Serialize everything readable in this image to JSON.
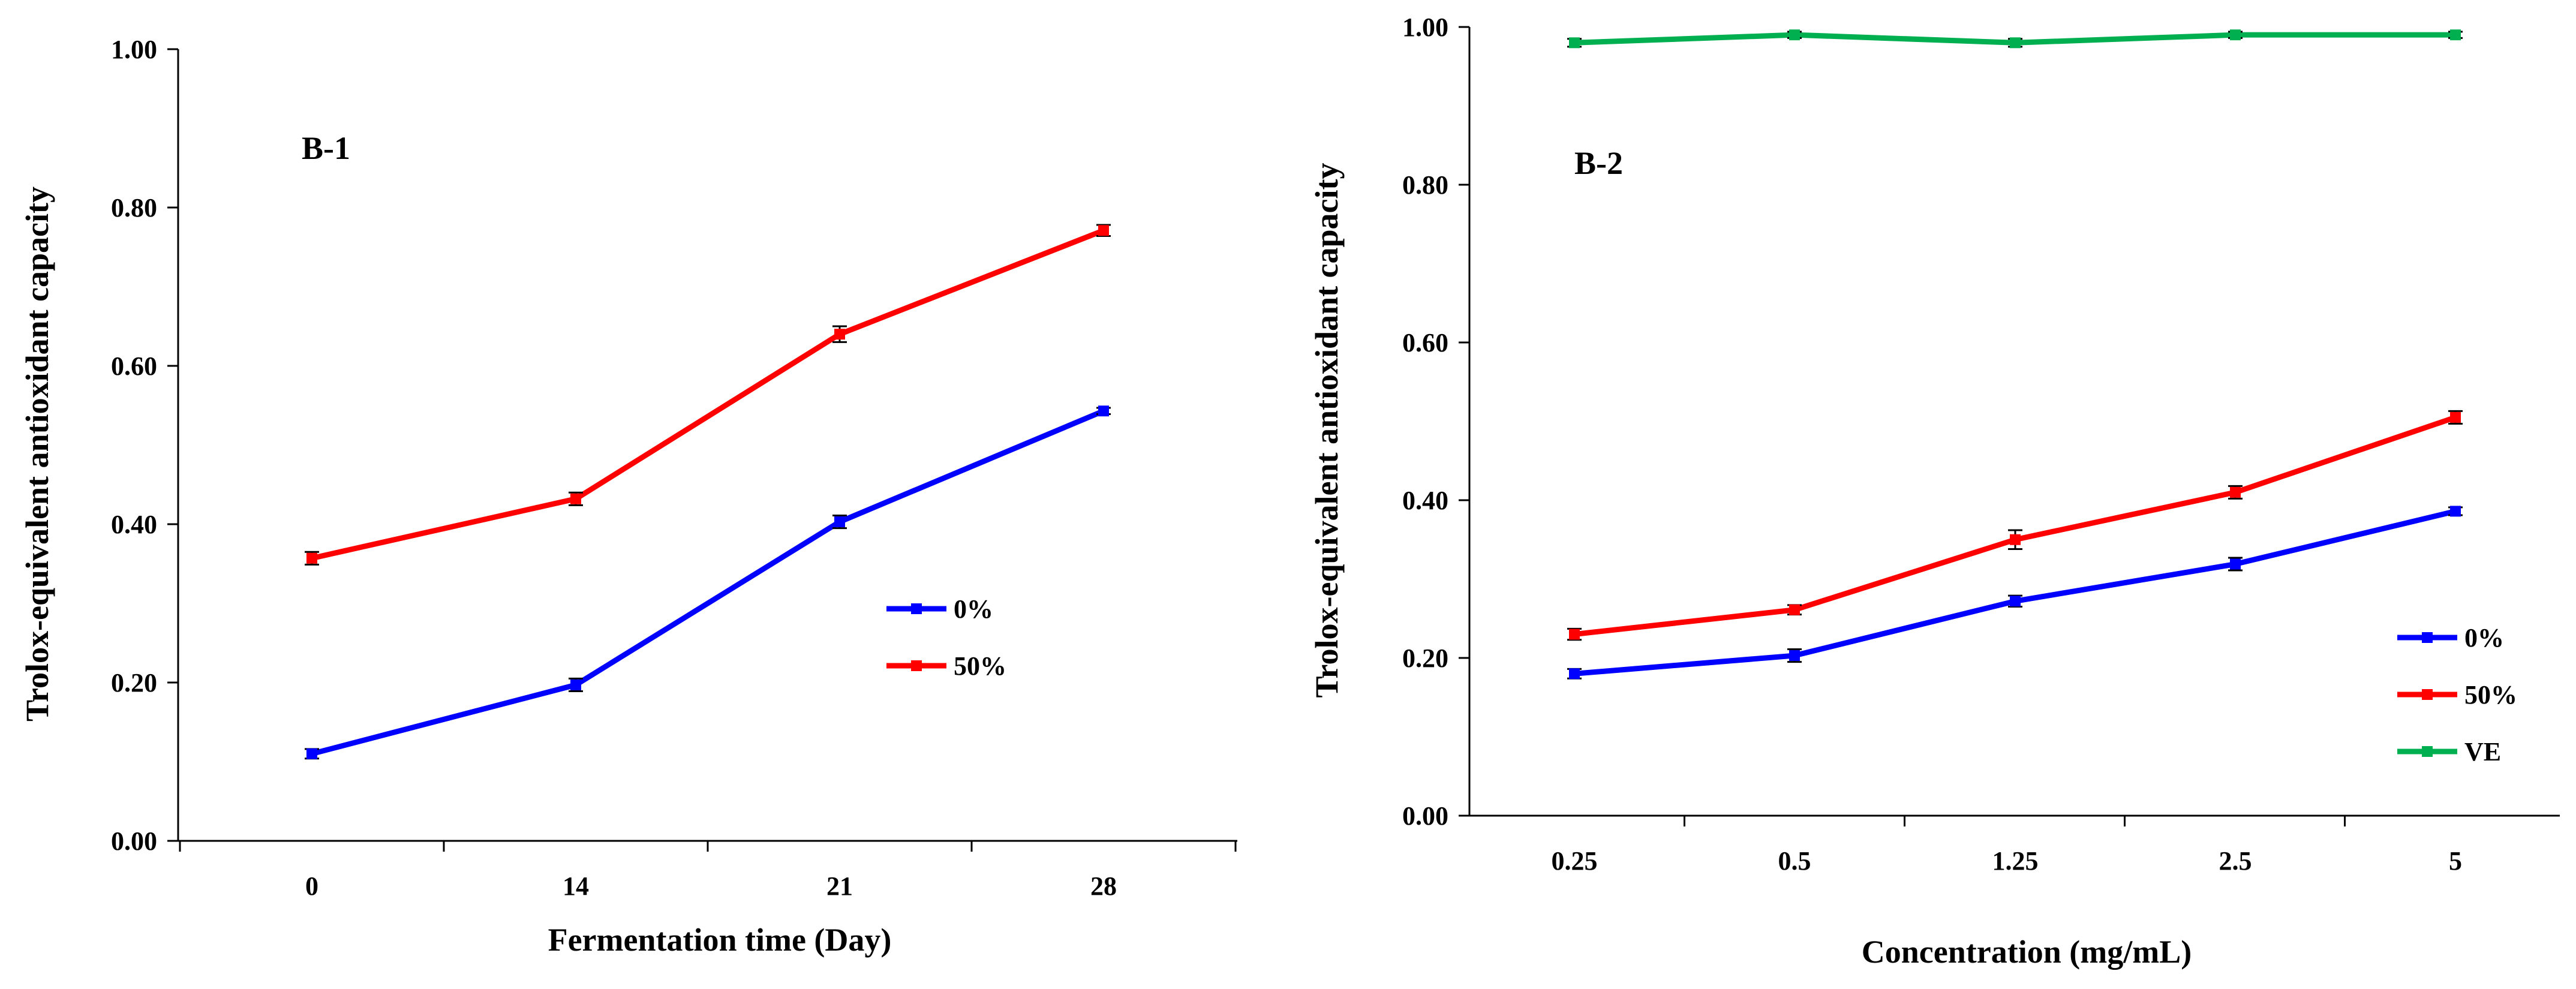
{
  "chart_data": [
    {
      "type": "line",
      "panel_label": "B-1",
      "xlabel": "Fermentation time (Day)",
      "ylabel": "Trolox-equivalent antioxidant capacity",
      "categories": [
        "0",
        "14",
        "21",
        "28"
      ],
      "ylim": [
        0,
        1.0
      ],
      "yticks": [
        "0.00",
        "0.20",
        "0.40",
        "0.60",
        "0.80",
        "1.00"
      ],
      "grid": false,
      "legend_position": "center-right",
      "series": [
        {
          "name": "0%",
          "color": "#0000ff",
          "values": [
            0.11,
            0.197,
            0.403,
            0.543
          ],
          "errors": [
            0.006,
            0.008,
            0.008,
            0.004
          ]
        },
        {
          "name": "50%",
          "color": "#ff0000",
          "values": [
            0.357,
            0.432,
            0.64,
            0.771
          ],
          "errors": [
            0.008,
            0.008,
            0.01,
            0.007
          ]
        }
      ]
    },
    {
      "type": "line",
      "panel_label": "B-2",
      "xlabel": "Concentration (mg/mL)",
      "ylabel": "Trolox-equivalent antioxidant capacity",
      "categories": [
        "0.25",
        "0.5",
        "1.25",
        "2.5",
        "5"
      ],
      "ylim": [
        0,
        1.0
      ],
      "yticks": [
        "0.00",
        "0.20",
        "0.40",
        "0.60",
        "0.80",
        "1.00"
      ],
      "grid": false,
      "legend_position": "bottom-right",
      "series": [
        {
          "name": "0%",
          "color": "#0000ff",
          "values": [
            0.18,
            0.203,
            0.272,
            0.319,
            0.386
          ],
          "errors": [
            0.006,
            0.008,
            0.007,
            0.008,
            0.005
          ]
        },
        {
          "name": "50%",
          "color": "#ff0000",
          "values": [
            0.23,
            0.261,
            0.35,
            0.41,
            0.505
          ],
          "errors": [
            0.007,
            0.006,
            0.012,
            0.008,
            0.008
          ]
        },
        {
          "name": "VE",
          "color": "#00b050",
          "values": [
            0.98,
            0.99,
            0.98,
            0.99,
            0.99
          ],
          "errors": [
            0.005,
            0.004,
            0.005,
            0.004,
            0.004
          ]
        }
      ]
    }
  ]
}
